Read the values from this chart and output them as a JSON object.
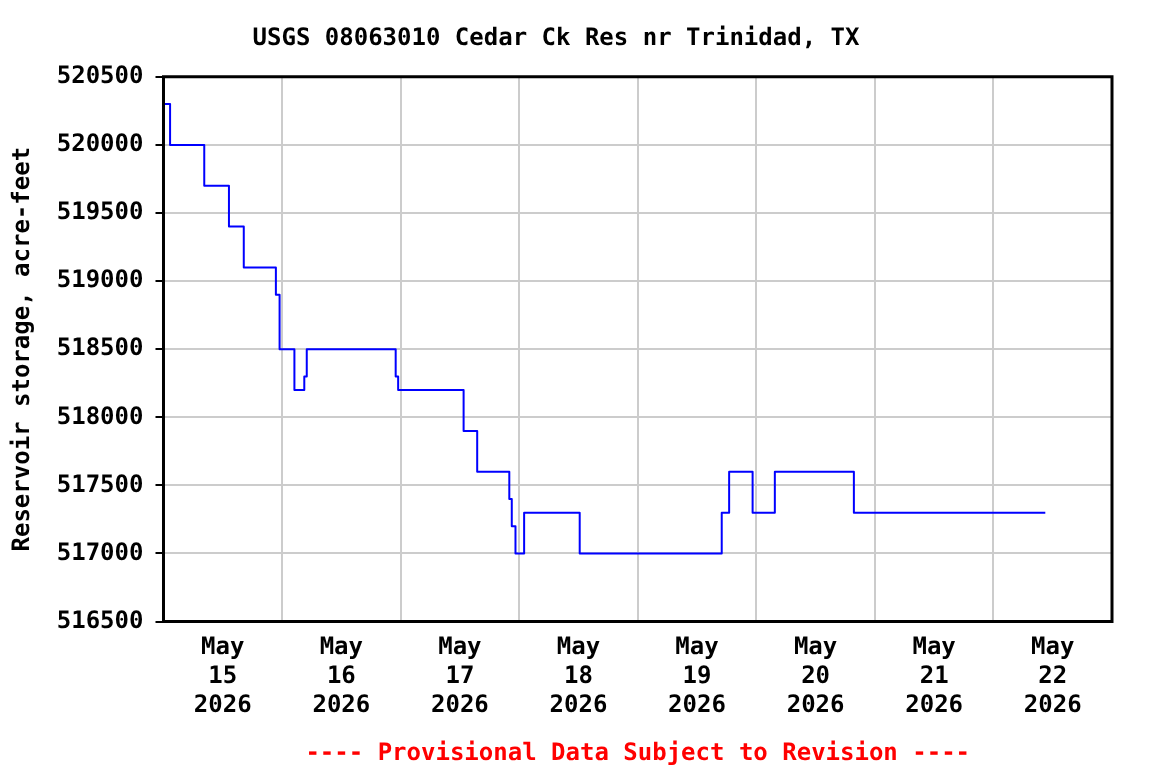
{
  "chart_data": {
    "type": "step",
    "title": "USGS 08063010 Cedar Ck Res nr Trinidad, TX",
    "ylabel": "Reservoir storage, acre-feet",
    "annotations": [
      "---- Provisional Data Subject to Revision ----"
    ],
    "x": [
      "2026-05-15T00:00",
      "2026-05-15T01:20",
      "2026-05-15T08:15",
      "2026-05-15T13:15",
      "2026-05-15T16:15",
      "2026-05-15T22:45",
      "2026-05-15T23:30",
      "2026-05-16T02:30",
      "2026-05-16T04:30",
      "2026-05-16T05:00",
      "2026-05-16T23:00",
      "2026-05-16T23:30",
      "2026-05-17T12:45",
      "2026-05-17T15:30",
      "2026-05-17T22:00",
      "2026-05-17T22:30",
      "2026-05-17T23:15",
      "2026-05-18T01:00",
      "2026-05-18T12:15",
      "2026-05-19T17:00",
      "2026-05-19T18:30",
      "2026-05-19T23:15",
      "2026-05-20T03:45",
      "2026-05-20T19:45",
      "2026-05-22T10:30"
    ],
    "series": [
      {
        "color": "#0000ff",
        "values": [
          520300,
          520000,
          519700,
          519400,
          519100,
          518900,
          518500,
          518200,
          518300,
          518500,
          518300,
          518200,
          517900,
          517600,
          517400,
          517200,
          517000,
          517300,
          517000,
          517300,
          517600,
          517300,
          517600,
          517300,
          517300
        ]
      }
    ],
    "xlim": [
      "2026-05-15T00:00",
      "2026-05-23T00:00"
    ],
    "xticks": [
      {
        "value": "2026-05-15T00:00",
        "label": null
      },
      {
        "value": "2026-05-15T12:00",
        "label": "May\n15\n2026"
      },
      {
        "value": "2026-05-16T00:00",
        "label": null
      },
      {
        "value": "2026-05-16T12:00",
        "label": "May\n16\n2026"
      },
      {
        "value": "2026-05-17T00:00",
        "label": null
      },
      {
        "value": "2026-05-17T12:00",
        "label": "May\n17\n2026"
      },
      {
        "value": "2026-05-18T00:00",
        "label": null
      },
      {
        "value": "2026-05-18T12:00",
        "label": "May\n18\n2026"
      },
      {
        "value": "2026-05-19T00:00",
        "label": null
      },
      {
        "value": "2026-05-19T12:00",
        "label": "May\n19\n2026"
      },
      {
        "value": "2026-05-20T00:00",
        "label": null
      },
      {
        "value": "2026-05-20T12:00",
        "label": "May\n20\n2026"
      },
      {
        "value": "2026-05-21T00:00",
        "label": null
      },
      {
        "value": "2026-05-21T12:00",
        "label": "May\n21\n2026"
      },
      {
        "value": "2026-05-22T00:00",
        "label": null
      },
      {
        "value": "2026-05-22T12:00",
        "label": "May\n22\n2026"
      },
      {
        "value": "2026-05-23T00:00",
        "label": null
      }
    ],
    "ylim": [
      516500,
      520500
    ],
    "yticks": [
      516500,
      517000,
      517500,
      518000,
      518500,
      519000,
      519500,
      520000,
      520500
    ],
    "grid": true,
    "legend": false
  }
}
